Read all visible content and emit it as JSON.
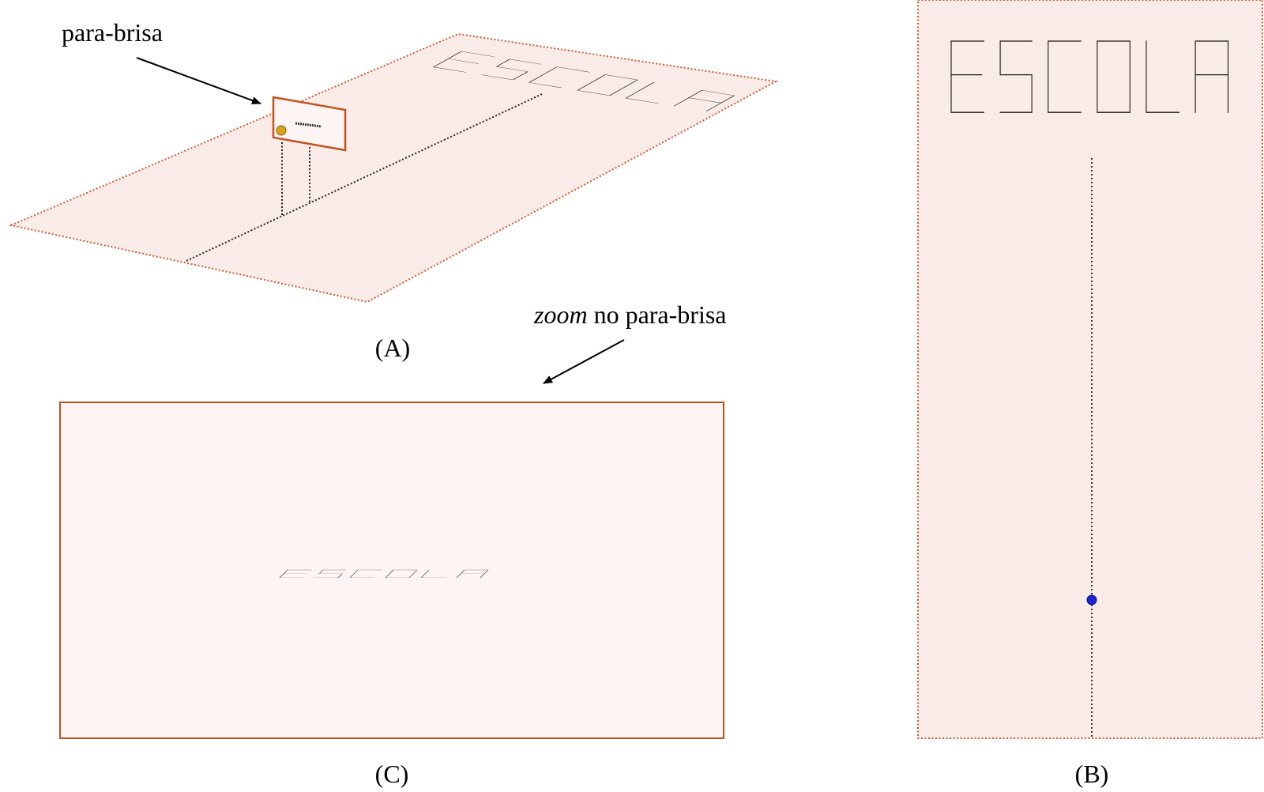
{
  "annotations": {
    "windshield_label": "para-brisa",
    "zoom_label_italic": "zoom",
    "zoom_label_rest": " no para-brisa"
  },
  "captions": {
    "a": "(A)",
    "b": "(B)",
    "c": "(C)"
  },
  "road_text": "ESCOLA",
  "colors": {
    "plane_fill": "#f8ebe8",
    "plane_border": "#cf5a2e",
    "windshield_fill": "#fcf5f3",
    "windshield_border": "#c2531f",
    "observer_dot_3d": "#d9a21b",
    "observer_dot_top": "#1d25d6",
    "path_line": "#222222"
  }
}
